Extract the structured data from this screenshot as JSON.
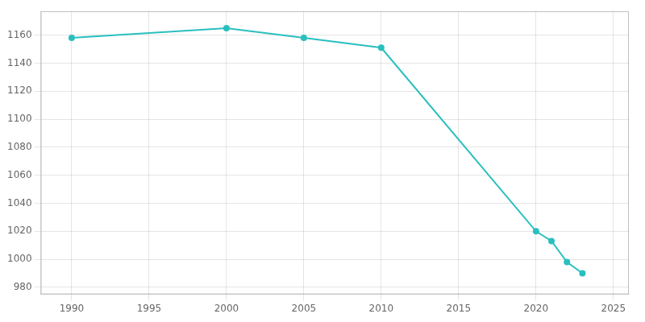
{
  "chart_data": {
    "type": "line",
    "x": [
      1990,
      2000,
      2005,
      2010,
      2020,
      2021,
      2022,
      2023
    ],
    "values": [
      1158,
      1165,
      1158,
      1151,
      1020,
      1013,
      998,
      990
    ],
    "color": "#2abfbf",
    "marker": "circle",
    "xlim": [
      1988,
      2026
    ],
    "ylim": [
      975,
      1177
    ],
    "xticks": [
      1990,
      1995,
      2000,
      2005,
      2010,
      2015,
      2020,
      2025
    ],
    "yticks": [
      980,
      1000,
      1020,
      1040,
      1060,
      1080,
      1100,
      1120,
      1140,
      1160
    ],
    "grid": true
  }
}
